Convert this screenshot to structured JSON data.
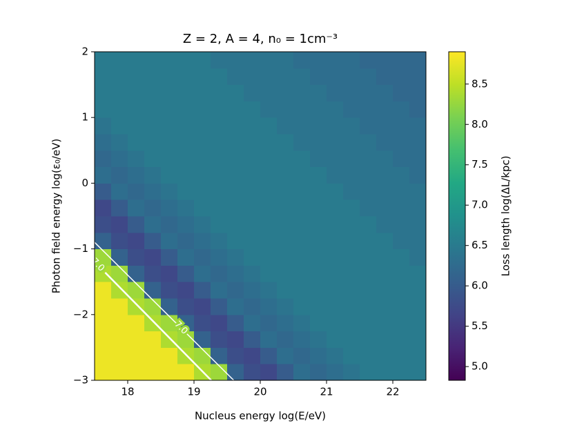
{
  "chart_data": {
    "type": "heatmap",
    "title": "Z = 2, A = 4, n₀ = 1cm⁻³",
    "x_label": "Nucleus energy log(E/eV)",
    "y_label": "Photon field energy log(ε₀/eV)",
    "colorbar_label": "Loss length log(ΔL/kpc)",
    "colormap": "viridis",
    "x": [
      17.5,
      17.75,
      18,
      18.25,
      18.5,
      18.75,
      19,
      19.25,
      19.5,
      19.75,
      20,
      20.25,
      20.5,
      20.75,
      21,
      21.25,
      21.5,
      21.75,
      22,
      22.25,
      22.5
    ],
    "y": [
      -3,
      -2.75,
      -2.5,
      -2.25,
      -2,
      -1.75,
      -1.5,
      -1.25,
      -1,
      -0.75,
      -0.5,
      -0.25,
      0,
      0.25,
      0.5,
      0.75,
      1,
      1.25,
      1.5,
      1.75,
      2
    ],
    "z": [
      [
        8.8,
        8.8,
        8.8,
        8.8,
        8.8,
        8.8,
        8.4,
        8.3,
        6.1,
        5.8,
        5.7,
        6.0,
        6.3,
        6.2,
        6.3,
        6.4,
        6.5,
        6.5,
        6.5,
        6.5
      ],
      [
        8.8,
        8.8,
        8.8,
        8.8,
        8.8,
        8.4,
        8.3,
        6.1,
        5.8,
        5.7,
        6.0,
        6.3,
        6.2,
        6.3,
        6.4,
        6.5,
        6.5,
        6.5,
        6.5,
        6.5
      ],
      [
        8.8,
        8.8,
        8.8,
        8.8,
        8.4,
        8.3,
        6.1,
        5.8,
        5.7,
        6.0,
        6.3,
        6.2,
        6.3,
        6.4,
        6.5,
        6.5,
        6.5,
        6.5,
        6.5,
        6.5
      ],
      [
        8.8,
        8.8,
        8.8,
        8.4,
        8.3,
        6.1,
        5.8,
        5.7,
        6.0,
        6.3,
        6.2,
        6.3,
        6.4,
        6.5,
        6.5,
        6.5,
        6.5,
        6.5,
        6.5,
        6.5
      ],
      [
        8.8,
        8.8,
        8.4,
        8.3,
        6.1,
        5.8,
        5.7,
        6.0,
        6.3,
        6.2,
        6.3,
        6.4,
        6.5,
        6.5,
        6.5,
        6.5,
        6.5,
        6.5,
        6.5,
        6.5
      ],
      [
        8.8,
        8.4,
        8.3,
        6.1,
        5.8,
        5.7,
        6.0,
        6.3,
        6.2,
        6.3,
        6.4,
        6.5,
        6.5,
        6.5,
        6.5,
        6.5,
        6.5,
        6.5,
        6.5,
        6.5
      ],
      [
        8.4,
        8.3,
        6.1,
        5.8,
        5.7,
        6.0,
        6.3,
        6.2,
        6.3,
        6.4,
        6.5,
        6.5,
        6.5,
        6.5,
        6.5,
        6.5,
        6.5,
        6.5,
        6.5,
        6.5
      ],
      [
        8.3,
        6.1,
        5.8,
        5.7,
        6.0,
        6.3,
        6.2,
        6.3,
        6.4,
        6.5,
        6.5,
        6.5,
        6.5,
        6.5,
        6.5,
        6.5,
        6.5,
        6.5,
        6.5,
        6.4
      ],
      [
        6.1,
        5.8,
        5.7,
        6.0,
        6.3,
        6.2,
        6.3,
        6.4,
        6.5,
        6.5,
        6.5,
        6.5,
        6.5,
        6.5,
        6.5,
        6.5,
        6.5,
        6.5,
        6.4,
        6.4
      ],
      [
        5.8,
        5.7,
        6.0,
        6.3,
        6.2,
        6.3,
        6.4,
        6.5,
        6.5,
        6.5,
        6.5,
        6.5,
        6.5,
        6.5,
        6.5,
        6.5,
        6.5,
        6.4,
        6.4,
        6.4
      ],
      [
        5.7,
        6.0,
        6.3,
        6.2,
        6.3,
        6.4,
        6.5,
        6.5,
        6.5,
        6.5,
        6.5,
        6.5,
        6.5,
        6.5,
        6.5,
        6.5,
        6.4,
        6.4,
        6.4,
        6.4
      ],
      [
        6.0,
        6.3,
        6.2,
        6.3,
        6.4,
        6.5,
        6.5,
        6.5,
        6.5,
        6.5,
        6.5,
        6.5,
        6.5,
        6.5,
        6.5,
        6.4,
        6.4,
        6.4,
        6.4,
        6.4
      ],
      [
        6.3,
        6.2,
        6.3,
        6.4,
        6.5,
        6.5,
        6.5,
        6.5,
        6.5,
        6.5,
        6.5,
        6.5,
        6.5,
        6.5,
        6.4,
        6.4,
        6.4,
        6.4,
        6.4,
        6.3
      ],
      [
        6.2,
        6.3,
        6.4,
        6.5,
        6.5,
        6.5,
        6.5,
        6.5,
        6.5,
        6.5,
        6.5,
        6.5,
        6.5,
        6.4,
        6.4,
        6.4,
        6.4,
        6.4,
        6.3,
        6.3
      ],
      [
        6.3,
        6.4,
        6.5,
        6.5,
        6.5,
        6.5,
        6.5,
        6.5,
        6.5,
        6.5,
        6.5,
        6.5,
        6.4,
        6.4,
        6.4,
        6.4,
        6.4,
        6.3,
        6.3,
        6.3
      ],
      [
        6.4,
        6.5,
        6.5,
        6.5,
        6.5,
        6.5,
        6.5,
        6.5,
        6.5,
        6.5,
        6.5,
        6.4,
        6.4,
        6.4,
        6.4,
        6.4,
        6.3,
        6.3,
        6.3,
        6.3
      ],
      [
        6.5,
        6.5,
        6.5,
        6.5,
        6.5,
        6.5,
        6.5,
        6.5,
        6.5,
        6.5,
        6.4,
        6.4,
        6.4,
        6.4,
        6.4,
        6.3,
        6.3,
        6.3,
        6.3,
        6.2
      ],
      [
        6.5,
        6.5,
        6.5,
        6.5,
        6.5,
        6.5,
        6.5,
        6.5,
        6.5,
        6.4,
        6.4,
        6.4,
        6.4,
        6.4,
        6.3,
        6.3,
        6.3,
        6.3,
        6.2,
        6.2
      ],
      [
        6.5,
        6.5,
        6.5,
        6.5,
        6.5,
        6.5,
        6.5,
        6.5,
        6.4,
        6.4,
        6.4,
        6.4,
        6.4,
        6.3,
        6.3,
        6.3,
        6.3,
        6.2,
        6.2,
        6.2
      ],
      [
        6.5,
        6.5,
        6.5,
        6.5,
        6.5,
        6.5,
        6.5,
        6.4,
        6.4,
        6.4,
        6.4,
        6.4,
        6.3,
        6.3,
        6.3,
        6.3,
        6.2,
        6.2,
        6.2,
        6.2
      ]
    ],
    "contours": [
      {
        "level": {
          "value": 7,
          "label": "7.0"
        },
        "x": [
          17.5,
          19.6
        ],
        "y": [
          -0.9,
          -3
        ]
      },
      {
        "level": {
          "value": 7,
          "label": "7.0"
        },
        "x": [
          17.66,
          19.26
        ],
        "y": [
          -1.36,
          -3
        ]
      }
    ],
    "xlim": [
      17.5,
      22.5
    ],
    "xticks": [
      18,
      19,
      20,
      21,
      22
    ],
    "ylim": [
      -3,
      2
    ],
    "yticks": [
      {
        "value": -3,
        "label": "−3"
      },
      {
        "value": -2,
        "label": "−2"
      },
      {
        "value": -1,
        "label": "−1"
      },
      0,
      1,
      2
    ],
    "clim": [
      4.83,
      8.9
    ],
    "cticks": [
      {
        "value": 5,
        "label": "5.0"
      },
      5.5,
      {
        "value": 6,
        "label": "6.0"
      },
      6.5,
      {
        "value": 7,
        "label": "7.0"
      },
      7.5,
      {
        "value": 8,
        "label": "8.0"
      },
      8.5
    ]
  }
}
